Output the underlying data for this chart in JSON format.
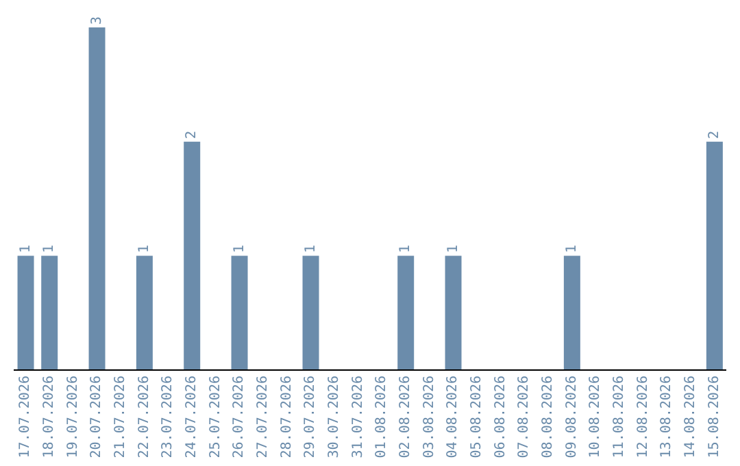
{
  "chart_data": {
    "type": "bar",
    "categories": [
      "17.07.2026",
      "18.07.2026",
      "19.07.2026",
      "20.07.2026",
      "21.07.2026",
      "22.07.2026",
      "23.07.2026",
      "24.07.2026",
      "25.07.2026",
      "26.07.2026",
      "27.07.2026",
      "28.07.2026",
      "29.07.2026",
      "30.07.2026",
      "31.07.2026",
      "01.08.2026",
      "02.08.2026",
      "03.08.2026",
      "04.08.2026",
      "05.08.2026",
      "06.08.2026",
      "07.08.2026",
      "08.08.2026",
      "09.08.2026",
      "10.08.2026",
      "11.08.2026",
      "12.08.2026",
      "13.08.2026",
      "14.08.2026",
      "15.08.2026"
    ],
    "values": [
      1,
      1,
      0,
      3,
      0,
      1,
      0,
      2,
      0,
      1,
      0,
      0,
      1,
      0,
      0,
      0,
      1,
      0,
      1,
      0,
      0,
      0,
      0,
      1,
      0,
      0,
      0,
      0,
      0,
      2
    ],
    "value_labels": [
      "1",
      "1",
      null,
      "3",
      null,
      "1",
      null,
      "2",
      null,
      "1",
      null,
      null,
      "1",
      null,
      null,
      null,
      "1",
      null,
      "1",
      null,
      null,
      null,
      null,
      "1",
      null,
      null,
      null,
      null,
      null,
      "2"
    ],
    "color": "#6b8cab",
    "grid": false,
    "legend": false
  }
}
